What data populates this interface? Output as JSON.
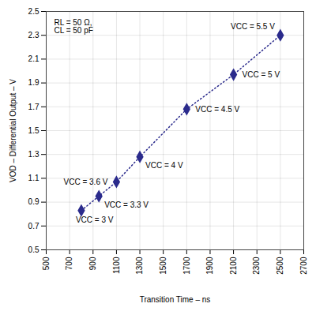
{
  "chart_data": {
    "type": "line",
    "x": [
      800,
      950,
      1100,
      1300,
      1700,
      2100,
      2500
    ],
    "values": [
      0.83,
      0.95,
      1.07,
      1.28,
      1.68,
      1.97,
      2.3
    ],
    "color": "#2B2B8C",
    "marker": "diamond",
    "line_style": "dotted",
    "xlabel": "Transition Time – ns",
    "ylabel": "VOD – Differential Output – V",
    "annotation": "RL = 50 Ω,\nCL = 50 pF",
    "point_labels": [
      "VCC = 3 V",
      "VCC = 3.3 V",
      "VCC = 3.6 V",
      "VCC = 4 V",
      "VCC = 4.5 V",
      "VCC = 5 V",
      "VCC = 5.5 V"
    ],
    "xlim": [
      500,
      2700
    ],
    "ylim": [
      0.5,
      2.5
    ],
    "xticks": [
      500,
      700,
      900,
      1100,
      1300,
      1500,
      1700,
      1900,
      2100,
      2300,
      2500,
      2700
    ],
    "yticks": [
      0.5,
      0.7,
      0.9,
      1.1,
      1.3,
      1.5,
      1.7,
      1.9,
      2.1,
      2.3,
      2.5
    ],
    "grid": true
  }
}
